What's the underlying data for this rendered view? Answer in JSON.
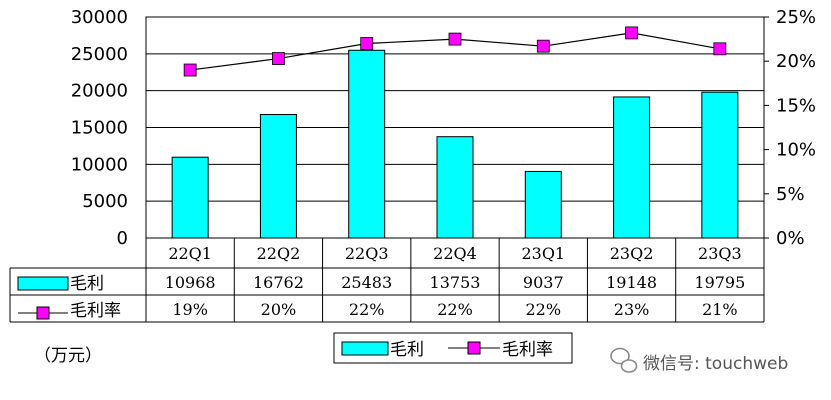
{
  "chart_data": {
    "type": "bar",
    "categories": [
      "22Q1",
      "22Q2",
      "22Q3",
      "22Q4",
      "23Q1",
      "23Q2",
      "23Q3"
    ],
    "series": [
      {
        "name": "毛利",
        "type": "bar",
        "axis": "left",
        "values": [
          10968,
          16762,
          25483,
          13753,
          9037,
          19148,
          19795
        ],
        "color": "#00FFFF"
      },
      {
        "name": "毛利率",
        "type": "line",
        "axis": "right",
        "values": [
          19,
          20.3,
          22,
          22.5,
          21.7,
          23.2,
          21.4
        ],
        "table_labels": [
          "19%",
          "20%",
          "22%",
          "22%",
          "22%",
          "23%",
          "21%"
        ],
        "color": "#FF00FF"
      }
    ],
    "y_left": {
      "min": 0,
      "max": 30000,
      "ticks": [
        "0",
        "5000",
        "10000",
        "15000",
        "20000",
        "25000",
        "30000"
      ]
    },
    "y_right": {
      "min": 0,
      "max": 25,
      "ticks": [
        "0%",
        "5%",
        "10%",
        "15%",
        "20%",
        "25%"
      ]
    },
    "grid": true,
    "legend_position": "bottom"
  },
  "unit_label": "（万元）",
  "watermark": "微信号: touchweb"
}
